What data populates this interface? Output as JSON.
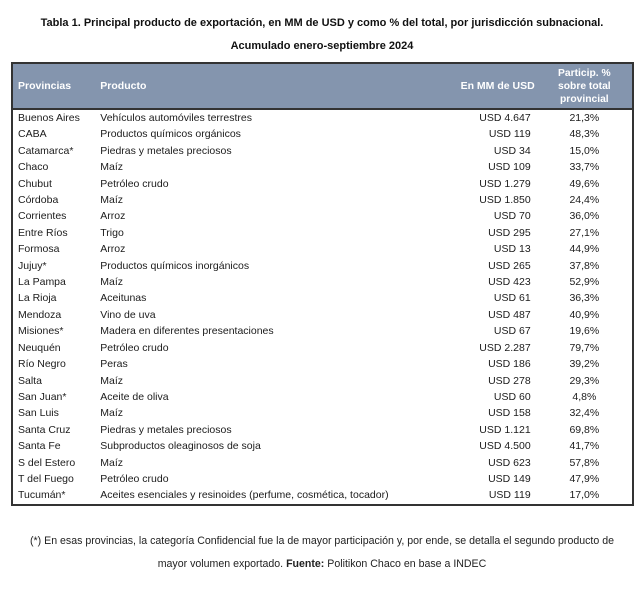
{
  "title": {
    "line1": "Tabla 1. Principal producto de exportación, en MM de USD y como % del total, por jurisdicción subnacional.",
    "line2": "Acumulado enero-septiembre 2024"
  },
  "table": {
    "header": {
      "provincias": "Provincias",
      "producto": "Producto",
      "usd": "En MM de USD",
      "particip": "Particip. %\nsobre total\nprovincial"
    },
    "rows": [
      {
        "province": "Buenos Aires",
        "product": "Vehículos automóviles terrestres",
        "usd": "USD 4.647",
        "share": "21,3%"
      },
      {
        "province": "CABA",
        "product": "Productos químicos orgánicos",
        "usd": "USD 119",
        "share": "48,3%"
      },
      {
        "province": "Catamarca*",
        "product": "Piedras y metales preciosos",
        "usd": "USD 34",
        "share": "15,0%"
      },
      {
        "province": "Chaco",
        "product": "Maíz",
        "usd": "USD 109",
        "share": "33,7%"
      },
      {
        "province": "Chubut",
        "product": "Petróleo crudo",
        "usd": "USD 1.279",
        "share": "49,6%"
      },
      {
        "province": "Córdoba",
        "product": "Maíz",
        "usd": "USD 1.850",
        "share": "24,4%"
      },
      {
        "province": "Corrientes",
        "product": "Arroz",
        "usd": "USD 70",
        "share": "36,0%"
      },
      {
        "province": "Entre Ríos",
        "product": "Trigo",
        "usd": "USD 295",
        "share": "27,1%"
      },
      {
        "province": "Formosa",
        "product": "Arroz",
        "usd": "USD 13",
        "share": "44,9%"
      },
      {
        "province": "Jujuy*",
        "product": "Productos químicos inorgánicos",
        "usd": "USD 265",
        "share": "37,8%"
      },
      {
        "province": "La Pampa",
        "product": "Maíz",
        "usd": "USD 423",
        "share": "52,9%"
      },
      {
        "province": "La Rioja",
        "product": "Aceitunas",
        "usd": "USD 61",
        "share": "36,3%"
      },
      {
        "province": "Mendoza",
        "product": "Vino de uva",
        "usd": "USD 487",
        "share": "40,9%"
      },
      {
        "province": "Misiones*",
        "product": "Madera en diferentes presentaciones",
        "usd": "USD 67",
        "share": "19,6%"
      },
      {
        "province": "Neuquén",
        "product": "Petróleo crudo",
        "usd": "USD 2.287",
        "share": "79,7%"
      },
      {
        "province": "Río Negro",
        "product": "Peras",
        "usd": "USD 186",
        "share": "39,2%"
      },
      {
        "province": "Salta",
        "product": "Maíz",
        "usd": "USD 278",
        "share": "29,3%"
      },
      {
        "province": "San Juan*",
        "product": "Aceite de oliva",
        "usd": "USD 60",
        "share": "4,8%"
      },
      {
        "province": "San Luis",
        "product": "Maíz",
        "usd": "USD 158",
        "share": "32,4%"
      },
      {
        "province": "Santa Cruz",
        "product": "Piedras y metales preciosos",
        "usd": "USD 1.121",
        "share": "69,8%"
      },
      {
        "province": "Santa Fe",
        "product": "Subproductos oleaginosos de soja",
        "usd": "USD 4.500",
        "share": "41,7%"
      },
      {
        "province": "S del Estero",
        "product": "Maíz",
        "usd": "USD 623",
        "share": "57,8%"
      },
      {
        "province": "T del Fuego",
        "product": "Petróleo crudo",
        "usd": "USD 149",
        "share": "47,9%"
      },
      {
        "province": "Tucumán*",
        "product": "Aceites esenciales y resinoides (perfume, cosmética, tocador)",
        "usd": "USD 119",
        "share": "17,0%"
      }
    ]
  },
  "footnote": {
    "line1": "(*) En esas provincias, la categoría Confidencial fue la de mayor participación y, por ende, se detalla el segundo producto de",
    "line2_pre": "mayor volumen exportado. ",
    "source_label": "Fuente:",
    "line2_post": " Politikon Chaco en base a INDEC"
  },
  "colors": {
    "header_bg": "#8495AE",
    "header_text": "#FFFFFF",
    "border": "#333333",
    "body_text": "#1B1B1B"
  }
}
